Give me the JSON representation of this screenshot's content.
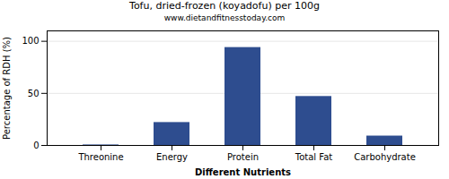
{
  "chart_data": {
    "type": "bar",
    "title": "Tofu, dried-frozen (koyadofu) per 100g",
    "subtitle": "www.dietandfitnesstoday.com",
    "xlabel": "Different Nutrients",
    "ylabel": "Percentage of RDH (%)",
    "categories": [
      "Threonine",
      "Energy",
      "Protein",
      "Total Fat",
      "Carbohydrate"
    ],
    "values": [
      0.5,
      22,
      94,
      47,
      9
    ],
    "color": "#2e4d8f",
    "ylim": [
      0,
      110
    ],
    "yticks": [
      0,
      50,
      100
    ],
    "grid": true
  }
}
